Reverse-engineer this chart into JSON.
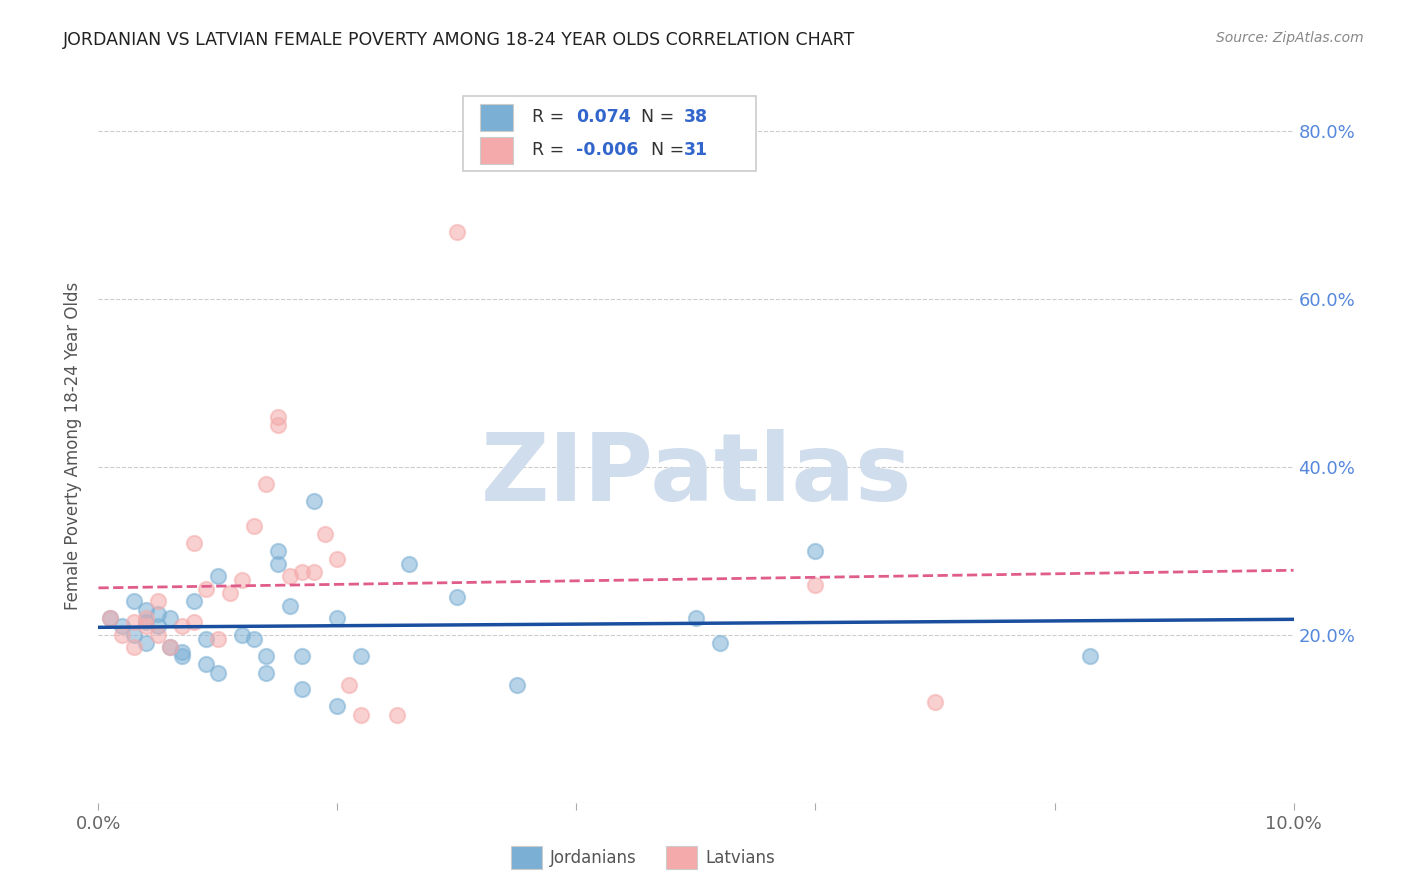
{
  "title": "JORDANIAN VS LATVIAN FEMALE POVERTY AMONG 18-24 YEAR OLDS CORRELATION CHART",
  "source": "Source: ZipAtlas.com",
  "ylabel": "Female Poverty Among 18-24 Year Olds",
  "xlim": [
    0.0,
    0.1
  ],
  "ylim": [
    0.0,
    0.85
  ],
  "yticks": [
    0.2,
    0.4,
    0.6,
    0.8
  ],
  "xticks": [
    0.0,
    0.02,
    0.04,
    0.06,
    0.08,
    0.1
  ],
  "xtick_labels": [
    "0.0%",
    "",
    "",
    "",
    "",
    "10.0%"
  ],
  "ytick_labels": [
    "20.0%",
    "40.0%",
    "60.0%",
    "80.0%"
  ],
  "legend_jordan_r": "0.074",
  "legend_jordan_n": "38",
  "legend_latvia_r": "-0.006",
  "legend_latvia_n": "31",
  "jordan_color": "#7BAFD4",
  "latvia_color": "#F4AAAA",
  "jordan_edge_color": "#7BAFD4",
  "latvia_edge_color": "#F4AAAA",
  "jordan_line_color": "#1A4FA0",
  "latvia_line_color": "#E05C8A",
  "watermark_text": "ZIPatlas",
  "watermark_color": "#D0DDED",
  "jordanians_x": [
    0.001,
    0.002,
    0.003,
    0.003,
    0.004,
    0.004,
    0.004,
    0.005,
    0.005,
    0.006,
    0.006,
    0.007,
    0.007,
    0.008,
    0.009,
    0.009,
    0.01,
    0.01,
    0.012,
    0.013,
    0.014,
    0.014,
    0.015,
    0.015,
    0.016,
    0.017,
    0.017,
    0.018,
    0.02,
    0.02,
    0.022,
    0.026,
    0.03,
    0.035,
    0.05,
    0.052,
    0.06,
    0.083
  ],
  "jordanians_y": [
    0.22,
    0.21,
    0.2,
    0.24,
    0.19,
    0.23,
    0.215,
    0.225,
    0.21,
    0.22,
    0.185,
    0.175,
    0.18,
    0.24,
    0.165,
    0.195,
    0.155,
    0.27,
    0.2,
    0.195,
    0.175,
    0.155,
    0.285,
    0.3,
    0.235,
    0.135,
    0.175,
    0.36,
    0.115,
    0.22,
    0.175,
    0.285,
    0.245,
    0.14,
    0.22,
    0.19,
    0.3,
    0.175
  ],
  "latvians_x": [
    0.001,
    0.002,
    0.003,
    0.003,
    0.004,
    0.004,
    0.005,
    0.005,
    0.006,
    0.007,
    0.008,
    0.008,
    0.009,
    0.01,
    0.011,
    0.012,
    0.013,
    0.014,
    0.015,
    0.015,
    0.016,
    0.017,
    0.018,
    0.019,
    0.02,
    0.021,
    0.022,
    0.025,
    0.03,
    0.06,
    0.07
  ],
  "latvians_y": [
    0.22,
    0.2,
    0.215,
    0.185,
    0.21,
    0.22,
    0.2,
    0.24,
    0.185,
    0.21,
    0.215,
    0.31,
    0.255,
    0.195,
    0.25,
    0.265,
    0.33,
    0.38,
    0.45,
    0.46,
    0.27,
    0.275,
    0.275,
    0.32,
    0.29,
    0.14,
    0.105,
    0.105,
    0.68,
    0.26,
    0.12
  ]
}
